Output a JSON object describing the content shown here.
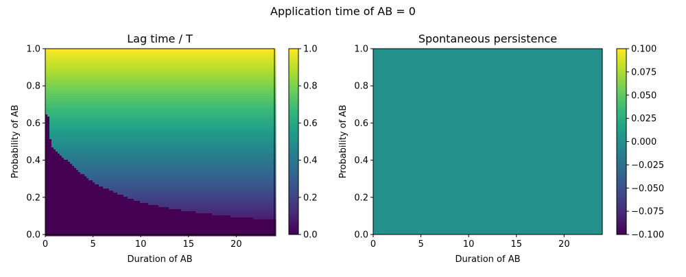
{
  "suptitle": "Application time of AB = 0",
  "colormap": [
    "#440154",
    "#482878",
    "#3e4a89",
    "#31688e",
    "#26828e",
    "#1f9e89",
    "#35b779",
    "#6ece58",
    "#b5de2b",
    "#fde725"
  ],
  "chart_data": [
    {
      "type": "heatmap",
      "title": "Lag time / T",
      "xlabel": "Duration of AB",
      "ylabel": "Probability of AB",
      "xlim": [
        0,
        24
      ],
      "ylim": [
        0,
        1
      ],
      "xticks": [
        0,
        5,
        10,
        15,
        20
      ],
      "yticks": [
        0.0,
        0.2,
        0.4,
        0.6,
        0.8,
        1.0
      ],
      "colorbar": {
        "range": [
          0.0,
          1.0
        ],
        "ticks": [
          0.0,
          0.2,
          0.4,
          0.6,
          0.8,
          1.0
        ],
        "tick_labels": [
          "0.0",
          "0.2",
          "0.4",
          "0.6",
          "0.8",
          "1.0"
        ]
      },
      "zero_region_boundary": [
        {
          "x": 0.3,
          "y": 0.65
        },
        {
          "x": 0.6,
          "y": 0.48
        },
        {
          "x": 1,
          "y": 0.46
        },
        {
          "x": 2,
          "y": 0.41
        },
        {
          "x": 3,
          "y": 0.36
        },
        {
          "x": 4,
          "y": 0.32
        },
        {
          "x": 5,
          "y": 0.28
        },
        {
          "x": 6,
          "y": 0.255
        },
        {
          "x": 8,
          "y": 0.21
        },
        {
          "x": 10,
          "y": 0.175
        },
        {
          "x": 12,
          "y": 0.15
        },
        {
          "x": 15,
          "y": 0.125
        },
        {
          "x": 18,
          "y": 0.105
        },
        {
          "x": 21,
          "y": 0.09
        },
        {
          "x": 24,
          "y": 0.077
        }
      ],
      "max_value": 1.0
    },
    {
      "type": "heatmap",
      "title": "Spontaneous persistence",
      "xlabel": "Duration of AB",
      "ylabel": "Probability of AB",
      "xlim": [
        0,
        24
      ],
      "ylim": [
        0,
        1
      ],
      "xticks": [
        0,
        5,
        10,
        15,
        20
      ],
      "yticks": [
        0.0,
        0.2,
        0.4,
        0.6,
        0.8,
        1.0
      ],
      "uniform_value": 0.0,
      "colorbar": {
        "range": [
          -0.1,
          0.1
        ],
        "ticks": [
          -0.1,
          -0.075,
          -0.05,
          -0.025,
          0.0,
          0.025,
          0.05,
          0.075,
          0.1
        ],
        "tick_labels": [
          "−0.100",
          "−0.075",
          "−0.050",
          "−0.025",
          "0.000",
          "0.025",
          "0.050",
          "0.075",
          "0.100"
        ]
      }
    }
  ]
}
